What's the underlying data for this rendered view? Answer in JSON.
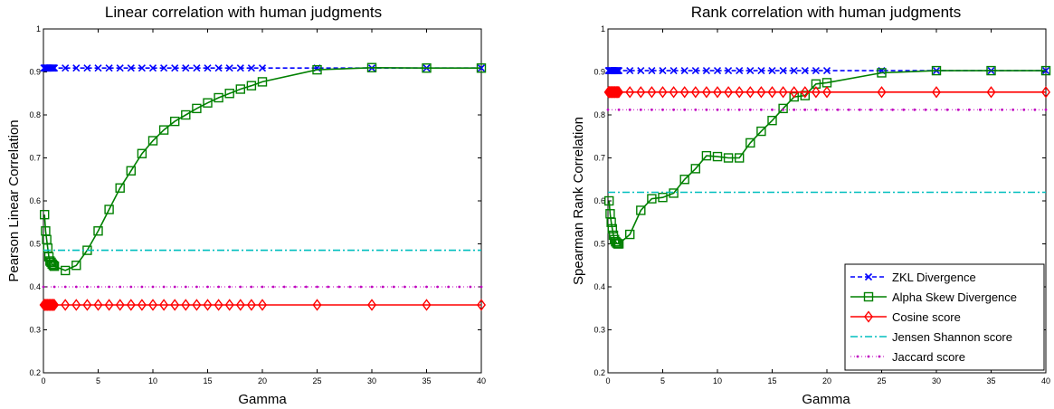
{
  "chart_data": [
    {
      "type": "line",
      "title": "Linear correlation with human judgments",
      "xlabel": "Gamma",
      "ylabel": "Pearson Linear Correlation",
      "xlim": [
        0,
        40
      ],
      "ylim": [
        0.2,
        1
      ],
      "xticks": [
        "0",
        "5",
        "10",
        "15",
        "20",
        "25",
        "30",
        "35",
        "40"
      ],
      "yticks": [
        "0.2",
        "0.3",
        "0.4",
        "0.5",
        "0.6",
        "0.7",
        "0.8",
        "0.9",
        "1"
      ],
      "grid": false,
      "legend": null,
      "series": [
        {
          "name": "ZKL Divergence",
          "color": "#0000ff",
          "dash": "5,3",
          "marker": "x",
          "x": [
            0.05,
            0.1,
            0.15,
            0.2,
            0.25,
            0.3,
            0.35,
            0.4,
            0.45,
            0.5,
            0.55,
            0.6,
            0.65,
            0.7,
            0.75,
            0.8,
            0.85,
            0.9,
            0.95,
            1,
            2,
            3,
            4,
            5,
            6,
            7,
            8,
            9,
            10,
            11,
            12,
            13,
            14,
            15,
            16,
            17,
            18,
            19,
            20,
            25,
            30,
            35,
            40
          ],
          "y": [
            0.909,
            0.909,
            0.909,
            0.909,
            0.909,
            0.909,
            0.909,
            0.909,
            0.909,
            0.909,
            0.909,
            0.909,
            0.909,
            0.909,
            0.909,
            0.909,
            0.909,
            0.909,
            0.909,
            0.909,
            0.909,
            0.909,
            0.909,
            0.909,
            0.909,
            0.909,
            0.909,
            0.909,
            0.909,
            0.909,
            0.909,
            0.909,
            0.909,
            0.909,
            0.909,
            0.909,
            0.909,
            0.909,
            0.909,
            0.909,
            0.909,
            0.909,
            0.909
          ]
        },
        {
          "name": "Alpha Skew Divergence",
          "color": "#008000",
          "dash": "",
          "marker": "square",
          "x": [
            0.1,
            0.2,
            0.3,
            0.4,
            0.5,
            0.6,
            0.7,
            0.8,
            0.9,
            1,
            2,
            3,
            4,
            5,
            6,
            7,
            8,
            9,
            10,
            11,
            12,
            13,
            14,
            15,
            16,
            17,
            18,
            19,
            20,
            25,
            30,
            35,
            40
          ],
          "y": [
            0.568,
            0.53,
            0.51,
            0.49,
            0.47,
            0.46,
            0.457,
            0.453,
            0.45,
            0.448,
            0.438,
            0.45,
            0.485,
            0.53,
            0.58,
            0.63,
            0.67,
            0.71,
            0.74,
            0.765,
            0.785,
            0.8,
            0.815,
            0.828,
            0.84,
            0.85,
            0.86,
            0.868,
            0.877,
            0.905,
            0.91,
            0.909,
            0.909
          ]
        },
        {
          "name": "Cosine score",
          "color": "#ff0000",
          "dash": "",
          "marker": "diamond",
          "x": [
            0.05,
            0.1,
            0.15,
            0.2,
            0.25,
            0.3,
            0.35,
            0.4,
            0.45,
            0.5,
            0.55,
            0.6,
            0.65,
            0.7,
            0.75,
            0.8,
            0.85,
            0.9,
            0.95,
            1,
            2,
            3,
            4,
            5,
            6,
            7,
            8,
            9,
            10,
            11,
            12,
            13,
            14,
            15,
            16,
            17,
            18,
            19,
            20,
            25,
            30,
            35,
            40
          ],
          "y": [
            0.358,
            0.358,
            0.358,
            0.358,
            0.358,
            0.358,
            0.358,
            0.358,
            0.358,
            0.358,
            0.358,
            0.358,
            0.358,
            0.358,
            0.358,
            0.358,
            0.358,
            0.358,
            0.358,
            0.358,
            0.358,
            0.358,
            0.358,
            0.358,
            0.358,
            0.358,
            0.358,
            0.358,
            0.358,
            0.358,
            0.358,
            0.358,
            0.358,
            0.358,
            0.358,
            0.358,
            0.358,
            0.358,
            0.358,
            0.358,
            0.358,
            0.358,
            0.358
          ]
        },
        {
          "name": "Jensen Shannon score",
          "color": "#00bfbf",
          "dash": "8,3,2,3",
          "marker": "none",
          "x": [
            0,
            40
          ],
          "y": [
            0.485,
            0.485
          ]
        },
        {
          "name": "Jaccard score",
          "color": "#bf00bf",
          "dash": "1,3",
          "marker": "dot",
          "x": [
            0,
            40
          ],
          "y": [
            0.4,
            0.4
          ]
        }
      ]
    },
    {
      "type": "line",
      "title": "Rank correlation with human judgments",
      "xlabel": "Gamma",
      "ylabel": "Spearman Rank Correlation",
      "xlim": [
        0,
        40
      ],
      "ylim": [
        0.2,
        1
      ],
      "xticks": [
        "0",
        "5",
        "10",
        "15",
        "20",
        "25",
        "30",
        "35",
        "40"
      ],
      "yticks": [
        "0.2",
        "0.3",
        "0.4",
        "0.5",
        "0.6",
        "0.7",
        "0.8",
        "0.9",
        "1"
      ],
      "grid": false,
      "legend": "bottom-right",
      "series": [
        {
          "name": "ZKL Divergence",
          "color": "#0000ff",
          "dash": "5,3",
          "marker": "x",
          "x": [
            0.05,
            0.1,
            0.15,
            0.2,
            0.25,
            0.3,
            0.35,
            0.4,
            0.45,
            0.5,
            0.55,
            0.6,
            0.65,
            0.7,
            0.75,
            0.8,
            0.85,
            0.9,
            0.95,
            1,
            2,
            3,
            4,
            5,
            6,
            7,
            8,
            9,
            10,
            11,
            12,
            13,
            14,
            15,
            16,
            17,
            18,
            19,
            20,
            25,
            30,
            35,
            40
          ],
          "y": [
            0.903,
            0.903,
            0.903,
            0.903,
            0.903,
            0.903,
            0.903,
            0.903,
            0.903,
            0.903,
            0.903,
            0.903,
            0.903,
            0.903,
            0.903,
            0.903,
            0.903,
            0.903,
            0.903,
            0.903,
            0.903,
            0.903,
            0.903,
            0.903,
            0.903,
            0.903,
            0.903,
            0.903,
            0.903,
            0.903,
            0.903,
            0.903,
            0.903,
            0.903,
            0.903,
            0.903,
            0.903,
            0.903,
            0.903,
            0.903,
            0.903,
            0.903,
            0.903
          ]
        },
        {
          "name": "Alpha Skew Divergence",
          "color": "#008000",
          "dash": "",
          "marker": "square",
          "x": [
            0.1,
            0.2,
            0.3,
            0.4,
            0.5,
            0.6,
            0.7,
            0.8,
            0.9,
            1,
            2,
            3,
            4,
            5,
            6,
            7,
            8,
            9,
            10,
            11,
            12,
            13,
            14,
            15,
            16,
            17,
            18,
            19,
            20,
            25,
            30,
            35,
            40
          ],
          "y": [
            0.6,
            0.57,
            0.55,
            0.535,
            0.52,
            0.51,
            0.505,
            0.502,
            0.5,
            0.5,
            0.522,
            0.578,
            0.605,
            0.608,
            0.618,
            0.65,
            0.675,
            0.705,
            0.703,
            0.7,
            0.7,
            0.735,
            0.762,
            0.787,
            0.815,
            0.842,
            0.845,
            0.872,
            0.875,
            0.898,
            0.903,
            0.903,
            0.903
          ]
        },
        {
          "name": "Cosine score",
          "color": "#ff0000",
          "dash": "",
          "marker": "diamond",
          "x": [
            0.05,
            0.1,
            0.15,
            0.2,
            0.25,
            0.3,
            0.35,
            0.4,
            0.45,
            0.5,
            0.55,
            0.6,
            0.65,
            0.7,
            0.75,
            0.8,
            0.85,
            0.9,
            0.95,
            1,
            2,
            3,
            4,
            5,
            6,
            7,
            8,
            9,
            10,
            11,
            12,
            13,
            14,
            15,
            16,
            17,
            18,
            19,
            20,
            25,
            30,
            35,
            40
          ],
          "y": [
            0.853,
            0.853,
            0.853,
            0.853,
            0.853,
            0.853,
            0.853,
            0.853,
            0.853,
            0.853,
            0.853,
            0.853,
            0.853,
            0.853,
            0.853,
            0.853,
            0.853,
            0.853,
            0.853,
            0.853,
            0.853,
            0.853,
            0.853,
            0.853,
            0.853,
            0.853,
            0.853,
            0.853,
            0.853,
            0.853,
            0.853,
            0.853,
            0.853,
            0.853,
            0.853,
            0.853,
            0.853,
            0.853,
            0.853,
            0.853,
            0.853,
            0.853,
            0.853
          ]
        },
        {
          "name": "Jensen Shannon score",
          "color": "#00bfbf",
          "dash": "8,3,2,3",
          "marker": "none",
          "x": [
            0,
            40
          ],
          "y": [
            0.62,
            0.62
          ]
        },
        {
          "name": "Jaccard score",
          "color": "#bf00bf",
          "dash": "1,3",
          "marker": "dot",
          "x": [
            0,
            40
          ],
          "y": [
            0.812,
            0.812
          ]
        }
      ]
    }
  ]
}
